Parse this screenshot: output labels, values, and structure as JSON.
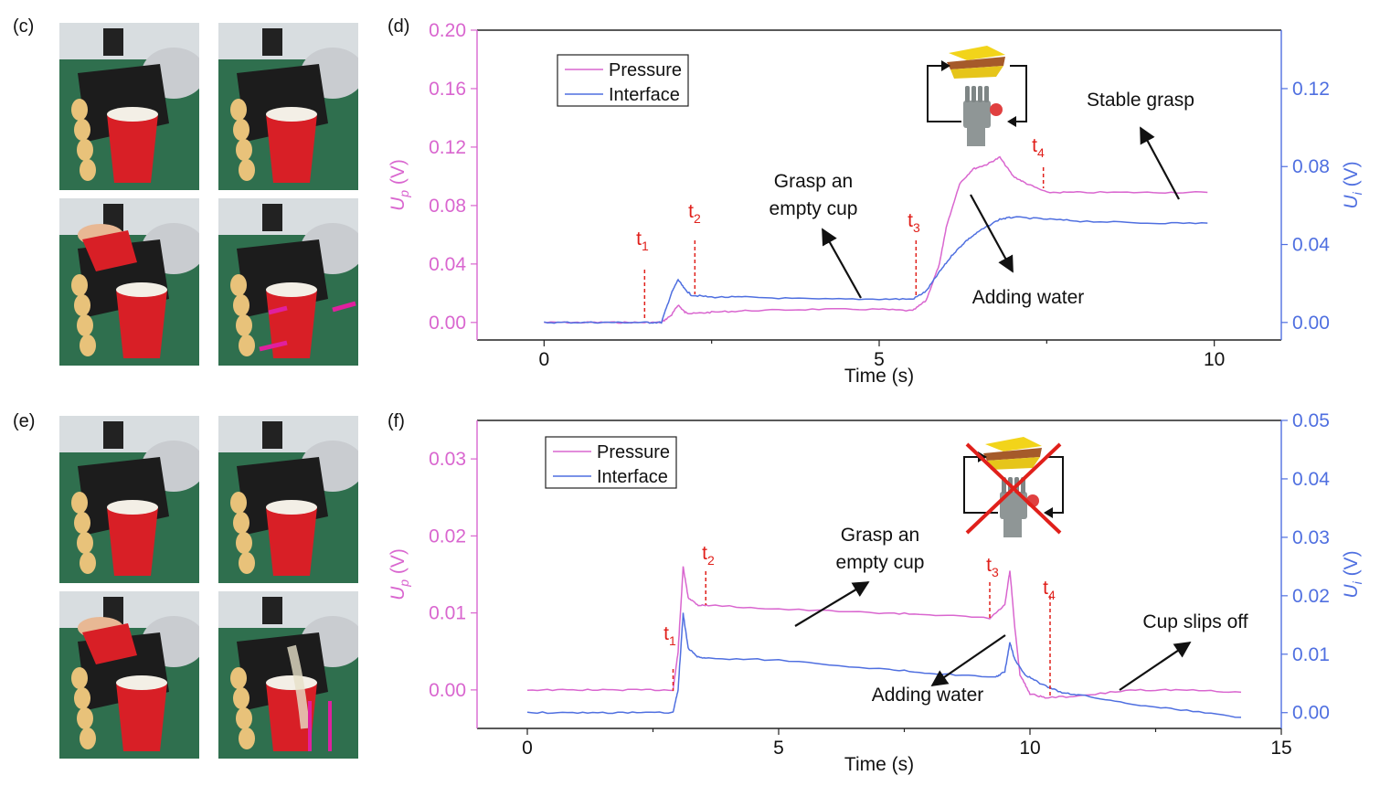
{
  "panels": {
    "c": "(c)",
    "d": "(d)",
    "e": "(e)",
    "f": "(f)"
  },
  "colors": {
    "pressure": "#d966cf",
    "interface": "#4f6fe0",
    "annotation_red": "#e0201b",
    "photo_background": "#2f6f4e",
    "cup_red": "#d81f26",
    "arrow_magenta": "#e0209e"
  },
  "photos": {
    "c": [
      {
        "icon": "robot-hand-cup-photo"
      },
      {
        "icon": "robot-hand-grasp-photo"
      },
      {
        "icon": "robot-hand-pour-photo"
      },
      {
        "icon": "robot-hand-force-arrows-photo"
      }
    ],
    "e": [
      {
        "icon": "robot-hand-cup-photo"
      },
      {
        "icon": "robot-hand-grasp-photo"
      },
      {
        "icon": "robot-hand-pour-photo"
      },
      {
        "icon": "robot-hand-slip-photo"
      }
    ]
  },
  "chart_data": [
    {
      "id": "d",
      "type": "line",
      "xlabel": "Time (s)",
      "ylabel_left": "U_p (V)",
      "ylabel_right": "U_i (V)",
      "xlim": [
        -1,
        11
      ],
      "xticks": [
        0,
        5,
        10
      ],
      "ylim_left": [
        -0.012,
        0.2
      ],
      "yticks_left": [
        "0.00",
        "0.04",
        "0.08",
        "0.12",
        "0.16",
        "0.20"
      ],
      "ylim_right": [
        -0.009,
        0.15
      ],
      "yticks_right": [
        "0.00",
        "0.04",
        "0.08",
        "0.12"
      ],
      "legend": {
        "position": "top-left",
        "entries": [
          "Pressure",
          "Interface"
        ]
      },
      "series": [
        {
          "name": "Pressure",
          "axis": "left",
          "x": [
            0,
            0.5,
            1.0,
            1.5,
            1.75,
            1.9,
            2.0,
            2.1,
            2.2,
            2.5,
            3.0,
            4.0,
            5.0,
            5.5,
            5.7,
            5.9,
            6.0,
            6.2,
            6.4,
            6.6,
            6.8,
            7.0,
            7.2,
            7.5,
            8.0,
            9.0,
            9.9
          ],
          "y": [
            0.0,
            0.0,
            0.0,
            0.0,
            0.0,
            0.005,
            0.012,
            0.007,
            0.006,
            0.007,
            0.008,
            0.009,
            0.009,
            0.008,
            0.015,
            0.04,
            0.065,
            0.095,
            0.105,
            0.108,
            0.113,
            0.1,
            0.095,
            0.089,
            0.089,
            0.089,
            0.089
          ]
        },
        {
          "name": "Interface",
          "axis": "right",
          "x": [
            0,
            0.5,
            1.0,
            1.5,
            1.75,
            1.9,
            2.0,
            2.1,
            2.2,
            2.5,
            3.0,
            4.0,
            5.0,
            5.5,
            5.7,
            5.9,
            6.1,
            6.3,
            6.5,
            6.8,
            7.0,
            7.5,
            8.0,
            9.0,
            9.9
          ],
          "y": [
            0.0,
            0.0,
            0.0,
            0.0,
            0.0,
            0.015,
            0.022,
            0.017,
            0.014,
            0.013,
            0.013,
            0.012,
            0.012,
            0.012,
            0.016,
            0.026,
            0.035,
            0.042,
            0.047,
            0.053,
            0.054,
            0.053,
            0.052,
            0.051,
            0.051
          ]
        }
      ],
      "events": [
        {
          "label": "t",
          "sub": "1",
          "x": 1.5
        },
        {
          "label": "t",
          "sub": "2",
          "x": 2.25
        },
        {
          "label": "t",
          "sub": "3",
          "x": 5.55
        },
        {
          "label": "t",
          "sub": "4",
          "x": 7.45
        }
      ],
      "annotations": [
        {
          "line1": "Grasp an",
          "line2": "empty cup"
        },
        {
          "line1": "Adding water",
          "line2": ""
        },
        {
          "line1": "Stable grasp",
          "line2": ""
        }
      ],
      "icon": "feedback-loop-icon"
    },
    {
      "id": "f",
      "type": "line",
      "xlabel": "Time (s)",
      "ylabel_left": "U_p (V)",
      "ylabel_right": "U_i (V)",
      "xlim": [
        -1,
        15
      ],
      "xticks": [
        0,
        5,
        10,
        15
      ],
      "ylim_left": [
        -0.005,
        0.035
      ],
      "yticks_left": [
        "0.00",
        "0.01",
        "0.02",
        "0.03"
      ],
      "ylim_right": [
        -0.0027,
        0.05
      ],
      "yticks_right": [
        "0.00",
        "0.01",
        "0.02",
        "0.03",
        "0.04",
        "0.05"
      ],
      "legend": {
        "position": "top-left",
        "entries": [
          "Pressure",
          "Interface"
        ]
      },
      "series": [
        {
          "name": "Pressure",
          "axis": "left",
          "x": [
            0,
            1,
            2,
            2.9,
            3.0,
            3.1,
            3.2,
            3.4,
            3.6,
            5,
            7,
            8,
            9.2,
            9.5,
            9.6,
            9.7,
            9.8,
            10.0,
            10.3,
            11,
            12,
            13,
            14.2
          ],
          "y": [
            0.0,
            0.0,
            0.0,
            0.0,
            0.005,
            0.016,
            0.012,
            0.011,
            0.011,
            0.0105,
            0.01,
            0.0098,
            0.0093,
            0.011,
            0.0155,
            0.008,
            0.002,
            -0.0005,
            -0.001,
            -0.0008,
            0.0,
            0.0,
            -0.0003
          ]
        },
        {
          "name": "Interface",
          "axis": "right",
          "x": [
            0,
            1,
            2,
            2.9,
            3.0,
            3.1,
            3.2,
            3.4,
            3.6,
            5,
            7,
            8,
            9.3,
            9.5,
            9.6,
            9.7,
            9.9,
            10.2,
            10.6,
            11,
            12,
            13,
            14.2
          ],
          "y": [
            0.0,
            0.0,
            0.0,
            0.0,
            0.004,
            0.017,
            0.011,
            0.0095,
            0.0093,
            0.009,
            0.0075,
            0.0068,
            0.006,
            0.007,
            0.012,
            0.009,
            0.0065,
            0.005,
            0.0035,
            0.003,
            0.0015,
            0.0005,
            -0.0008
          ]
        }
      ],
      "events": [
        {
          "label": "t",
          "sub": "1",
          "x": 2.9
        },
        {
          "label": "t",
          "sub": "2",
          "x": 3.55
        },
        {
          "label": "t",
          "sub": "3",
          "x": 9.2
        },
        {
          "label": "t",
          "sub": "4",
          "x": 10.4
        }
      ],
      "annotations": [
        {
          "line1": "Grasp an",
          "line2": "empty cup"
        },
        {
          "line1": "Adding water",
          "line2": ""
        },
        {
          "line1": "Cup slips off",
          "line2": ""
        }
      ],
      "icon": "broken-feedback-loop-icon"
    }
  ]
}
